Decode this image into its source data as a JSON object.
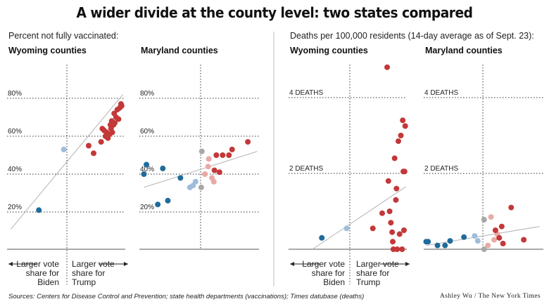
{
  "title": "A wider divide at the county level: two states compared",
  "sections": [
    {
      "label": "Percent not fully vaccinated:"
    },
    {
      "label": "Deaths per 100,000 residents (14-day average as of Sept. 23):"
    }
  ],
  "arrows": {
    "left_label": "Larger vote share for Biden",
    "right_label": "Larger vote share for Trump"
  },
  "colors": {
    "strong_dem": "#1f6b9b",
    "lean_dem": "#9fbcdc",
    "neutral": "#a8a8a8",
    "lean_rep": "#e9aaa6",
    "strong_rep": "#c33838",
    "trend_line": "#b4b4b4"
  },
  "footer": {
    "sources": "Sources: Centers for Disease Control and Prevention; state health departments (vaccinations); Times datubase (deaths)",
    "credit": "Ashley Wu / The New York Times"
  },
  "chart_data": [
    {
      "type": "scatter",
      "title": "Wyoming counties",
      "section": "Percent not fully vaccinated:",
      "x_axis_meaning": "vote share margin (left = Biden, right = Trump)",
      "ylim": [
        0,
        90
      ],
      "yticks": [
        {
          "value": 20,
          "label": "20%"
        },
        {
          "value": 40,
          "label": "40%"
        },
        {
          "value": 60,
          "label": "60%"
        },
        {
          "value": 80,
          "label": "80%"
        }
      ],
      "xlim": [
        -0.9,
        0.9
      ],
      "trend": [
        [
          -0.9,
          11
        ],
        [
          0.9,
          82
        ]
      ],
      "points": [
        {
          "x": -0.45,
          "y": 21,
          "c": "strong_dem"
        },
        {
          "x": -0.05,
          "y": 53,
          "c": "lean_dem"
        },
        {
          "x": 0.35,
          "y": 55,
          "c": "strong_rep"
        },
        {
          "x": 0.43,
          "y": 51,
          "c": "strong_rep"
        },
        {
          "x": 0.55,
          "y": 57,
          "c": "strong_rep"
        },
        {
          "x": 0.57,
          "y": 64,
          "c": "strong_rep"
        },
        {
          "x": 0.6,
          "y": 63,
          "c": "strong_rep"
        },
        {
          "x": 0.62,
          "y": 60,
          "c": "strong_rep"
        },
        {
          "x": 0.64,
          "y": 62,
          "c": "strong_rep"
        },
        {
          "x": 0.66,
          "y": 59,
          "c": "strong_rep"
        },
        {
          "x": 0.68,
          "y": 61,
          "c": "strong_rep"
        },
        {
          "x": 0.7,
          "y": 66,
          "c": "strong_rep"
        },
        {
          "x": 0.71,
          "y": 64,
          "c": "strong_rep"
        },
        {
          "x": 0.72,
          "y": 68,
          "c": "strong_rep"
        },
        {
          "x": 0.73,
          "y": 62,
          "c": "strong_rep"
        },
        {
          "x": 0.75,
          "y": 66,
          "c": "strong_rep"
        },
        {
          "x": 0.76,
          "y": 72,
          "c": "strong_rep"
        },
        {
          "x": 0.77,
          "y": 67,
          "c": "strong_rep"
        },
        {
          "x": 0.79,
          "y": 70,
          "c": "strong_rep"
        },
        {
          "x": 0.81,
          "y": 74,
          "c": "strong_rep"
        },
        {
          "x": 0.83,
          "y": 69,
          "c": "strong_rep"
        },
        {
          "x": 0.85,
          "y": 75,
          "c": "strong_rep"
        },
        {
          "x": 0.87,
          "y": 77,
          "c": "strong_rep"
        },
        {
          "x": 0.88,
          "y": 76,
          "c": "strong_rep"
        }
      ]
    },
    {
      "type": "scatter",
      "title": "Maryland counties",
      "section": "Percent not fully vaccinated:",
      "x_axis_meaning": "vote share margin (left = Biden, right = Trump)",
      "ylim": [
        0,
        90
      ],
      "yticks": [
        {
          "value": 20,
          "label": "20%"
        },
        {
          "value": 40,
          "label": "40%"
        },
        {
          "value": 60,
          "label": "60%"
        },
        {
          "value": 80,
          "label": "80%"
        }
      ],
      "xlim": [
        -0.9,
        0.9
      ],
      "trend": [
        [
          -0.9,
          33
        ],
        [
          0.9,
          52
        ]
      ],
      "points": [
        {
          "x": -0.86,
          "y": 45,
          "c": "strong_dem"
        },
        {
          "x": -0.9,
          "y": 40,
          "c": "strong_dem"
        },
        {
          "x": -0.6,
          "y": 43,
          "c": "strong_dem"
        },
        {
          "x": -0.68,
          "y": 24,
          "c": "strong_dem"
        },
        {
          "x": -0.52,
          "y": 26,
          "c": "strong_dem"
        },
        {
          "x": -0.32,
          "y": 38,
          "c": "strong_dem"
        },
        {
          "x": -0.17,
          "y": 33,
          "c": "lean_dem"
        },
        {
          "x": -0.12,
          "y": 34,
          "c": "lean_dem"
        },
        {
          "x": -0.08,
          "y": 36,
          "c": "lean_dem"
        },
        {
          "x": 0.01,
          "y": 33,
          "c": "neutral"
        },
        {
          "x": 0.02,
          "y": 52,
          "c": "neutral"
        },
        {
          "x": 0.07,
          "y": 40,
          "c": "lean_rep"
        },
        {
          "x": 0.12,
          "y": 44,
          "c": "lean_rep"
        },
        {
          "x": 0.13,
          "y": 48,
          "c": "lean_rep"
        },
        {
          "x": 0.18,
          "y": 38,
          "c": "lean_rep"
        },
        {
          "x": 0.21,
          "y": 36,
          "c": "lean_rep"
        },
        {
          "x": 0.22,
          "y": 42,
          "c": "strong_rep"
        },
        {
          "x": 0.25,
          "y": 50,
          "c": "strong_rep"
        },
        {
          "x": 0.3,
          "y": 41,
          "c": "strong_rep"
        },
        {
          "x": 0.35,
          "y": 50,
          "c": "strong_rep"
        },
        {
          "x": 0.45,
          "y": 50,
          "c": "strong_rep"
        },
        {
          "x": 0.5,
          "y": 53,
          "c": "strong_rep"
        },
        {
          "x": 0.75,
          "y": 57,
          "c": "strong_rep"
        }
      ]
    },
    {
      "type": "scatter",
      "title": "Wyoming counties",
      "section": "Deaths per 100,000 residents (14-day average as of Sept. 23):",
      "x_axis_meaning": "vote share margin (left = Biden, right = Trump)",
      "ylim": [
        0,
        5
      ],
      "yticks": [
        {
          "value": 2,
          "label": "2 DEATHS"
        },
        {
          "value": 4,
          "label": "4 DEATHS"
        }
      ],
      "xlim": [
        -0.9,
        0.9
      ],
      "trend": [
        [
          -0.6,
          0
        ],
        [
          0.9,
          1.65
        ]
      ],
      "points": [
        {
          "x": -0.45,
          "y": 0.3,
          "c": "strong_dem"
        },
        {
          "x": -0.05,
          "y": 0.55,
          "c": "lean_dem"
        },
        {
          "x": 0.37,
          "y": 0.55,
          "c": "strong_rep"
        },
        {
          "x": 0.52,
          "y": 0.95,
          "c": "strong_rep"
        },
        {
          "x": 0.6,
          "y": 4.8,
          "c": "strong_rep"
        },
        {
          "x": 0.62,
          "y": 1.8,
          "c": "strong_rep"
        },
        {
          "x": 0.64,
          "y": 1.0,
          "c": "strong_rep"
        },
        {
          "x": 0.66,
          "y": 0.7,
          "c": "strong_rep"
        },
        {
          "x": 0.68,
          "y": 0.45,
          "c": "strong_rep"
        },
        {
          "x": 0.69,
          "y": 0.2,
          "c": "strong_rep"
        },
        {
          "x": 0.7,
          "y": 0.0,
          "c": "strong_rep"
        },
        {
          "x": 0.72,
          "y": 2.4,
          "c": "strong_rep"
        },
        {
          "x": 0.74,
          "y": 1.3,
          "c": "strong_rep"
        },
        {
          "x": 0.76,
          "y": 0.0,
          "c": "strong_rep"
        },
        {
          "x": 0.78,
          "y": 2.85,
          "c": "strong_rep"
        },
        {
          "x": 0.8,
          "y": 0.4,
          "c": "strong_rep"
        },
        {
          "x": 0.82,
          "y": 3.0,
          "c": "strong_rep"
        },
        {
          "x": 0.84,
          "y": 0.0,
          "c": "strong_rep"
        },
        {
          "x": 0.85,
          "y": 3.4,
          "c": "strong_rep"
        },
        {
          "x": 0.86,
          "y": 2.05,
          "c": "strong_rep"
        },
        {
          "x": 0.87,
          "y": 0.5,
          "c": "strong_rep"
        },
        {
          "x": 0.88,
          "y": 2.05,
          "c": "strong_rep"
        },
        {
          "x": 0.89,
          "y": 3.25,
          "c": "strong_rep"
        },
        {
          "x": 0.75,
          "y": 1.6,
          "c": "strong_rep"
        }
      ]
    },
    {
      "type": "scatter",
      "title": "Maryland counties",
      "section": "Deaths per 100,000 residents (14-day average as of Sept. 23):",
      "x_axis_meaning": "vote share margin (left = Biden, right = Trump)",
      "ylim": [
        0,
        5
      ],
      "yticks": [
        {
          "value": 2,
          "label": "2 DEATHS"
        },
        {
          "value": 4,
          "label": "4 DEATHS"
        }
      ],
      "xlim": [
        -0.9,
        0.9
      ],
      "trend": [
        [
          -0.9,
          0.1
        ],
        [
          0.9,
          0.6
        ]
      ],
      "points": [
        {
          "x": -0.9,
          "y": 0.2,
          "c": "strong_dem"
        },
        {
          "x": -0.87,
          "y": 0.2,
          "c": "strong_dem"
        },
        {
          "x": -0.72,
          "y": 0.1,
          "c": "strong_dem"
        },
        {
          "x": -0.6,
          "y": 0.1,
          "c": "strong_dem"
        },
        {
          "x": -0.52,
          "y": 0.22,
          "c": "strong_dem"
        },
        {
          "x": -0.3,
          "y": 0.32,
          "c": "strong_dem"
        },
        {
          "x": -0.13,
          "y": 0.35,
          "c": "lean_dem"
        },
        {
          "x": -0.08,
          "y": 0.22,
          "c": "lean_dem"
        },
        {
          "x": 0.02,
          "y": 0.78,
          "c": "neutral"
        },
        {
          "x": 0.02,
          "y": 0.0,
          "c": "neutral"
        },
        {
          "x": 0.08,
          "y": 0.1,
          "c": "lean_rep"
        },
        {
          "x": 0.13,
          "y": 0.85,
          "c": "lean_rep"
        },
        {
          "x": 0.18,
          "y": 0.25,
          "c": "lean_rep"
        },
        {
          "x": 0.23,
          "y": 0.4,
          "c": "lean_rep"
        },
        {
          "x": 0.2,
          "y": 0.5,
          "c": "strong_rep"
        },
        {
          "x": 0.26,
          "y": 0.3,
          "c": "strong_rep"
        },
        {
          "x": 0.3,
          "y": 0.6,
          "c": "strong_rep"
        },
        {
          "x": 0.32,
          "y": 0.15,
          "c": "strong_rep"
        },
        {
          "x": 0.45,
          "y": 1.1,
          "c": "strong_rep"
        },
        {
          "x": 0.65,
          "y": 0.25,
          "c": "strong_rep"
        }
      ]
    }
  ]
}
